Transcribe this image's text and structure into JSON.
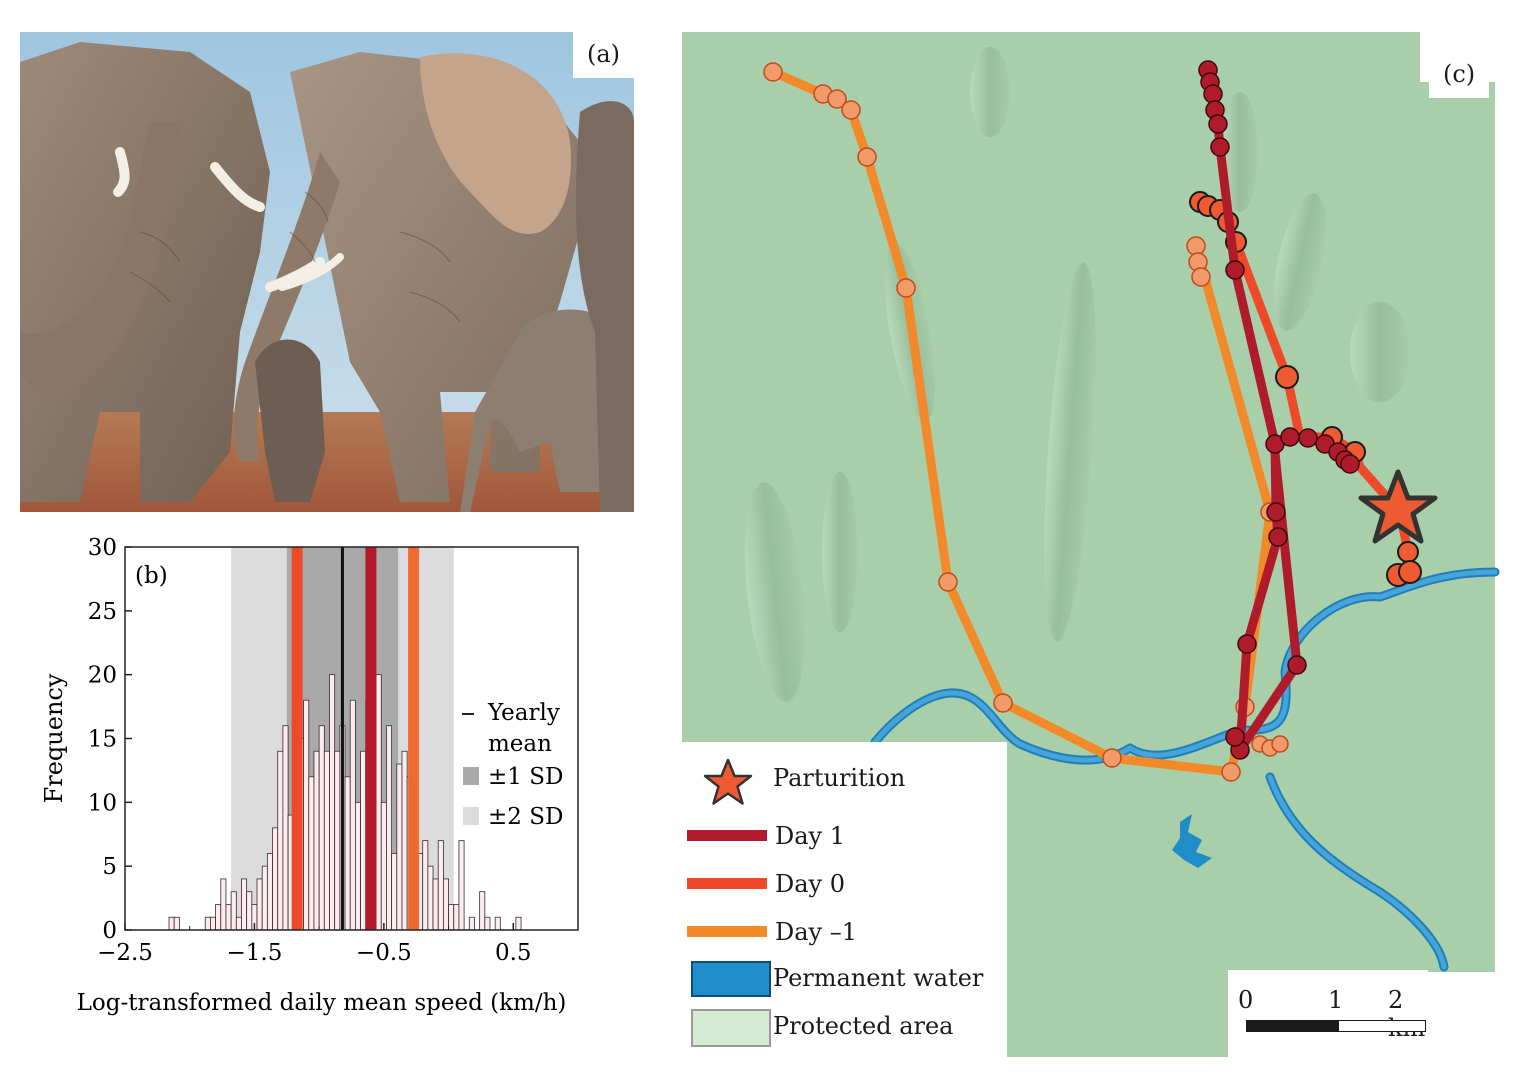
{
  "panel_a": {
    "label": "(a)",
    "photo_icon": "elephant-herd-with-calf-photo"
  },
  "panel_b": {
    "label": "(b)",
    "legend": {
      "yearly_mean_line1": "Yearly",
      "yearly_mean_line2": "mean",
      "sd1": "±1 SD",
      "sd2": "±2 SD"
    },
    "chart_data": {
      "type": "bar",
      "xlabel": "Log-transformed daily mean speed (km/h)",
      "ylabel": "Frequency",
      "xlim": [
        -2.5,
        1.0
      ],
      "ylim": [
        0,
        30
      ],
      "xticks": [
        -2.5,
        -1.5,
        -0.5,
        0.5
      ],
      "xtick_labels": [
        "−2.5",
        "−1.5",
        "−0.5",
        "0.5"
      ],
      "yticks": [
        0,
        5,
        10,
        15,
        20,
        25,
        30
      ],
      "bin_width": 0.04,
      "bins_start": [
        -2.16,
        -2.12,
        -2.08,
        -2.04,
        -2.0,
        -1.96,
        -1.92,
        -1.88,
        -1.84,
        -1.8,
        -1.76,
        -1.72,
        -1.68,
        -1.64,
        -1.6,
        -1.56,
        -1.52,
        -1.48,
        -1.44,
        -1.4,
        -1.36,
        -1.32,
        -1.28,
        -1.24,
        -1.2,
        -1.16,
        -1.12,
        -1.08,
        -1.04,
        -1.0,
        -0.96,
        -0.92,
        -0.88,
        -0.84,
        -0.8,
        -0.76,
        -0.72,
        -0.68,
        -0.64,
        -0.6,
        -0.56,
        -0.52,
        -0.48,
        -0.44,
        -0.4,
        -0.36,
        -0.32,
        -0.28,
        -0.24,
        -0.2,
        -0.16,
        -0.12,
        -0.08,
        -0.04,
        0.0,
        0.04,
        0.08,
        0.12,
        0.16,
        0.2,
        0.24,
        0.28,
        0.32,
        0.36,
        0.4,
        0.44,
        0.48,
        0.52
      ],
      "frequencies": [
        1,
        1,
        0,
        0,
        0,
        0,
        0,
        1,
        1,
        2,
        4,
        2,
        3,
        1,
        4,
        3,
        2,
        4,
        5,
        6,
        8,
        14,
        16,
        9,
        12,
        15,
        18,
        12,
        14,
        16,
        14,
        20,
        14,
        16,
        12,
        18,
        10,
        14,
        18,
        16,
        20,
        10,
        16,
        6,
        13,
        14,
        12,
        10,
        6,
        7,
        5,
        4,
        7,
        4,
        2,
        2,
        7,
        0,
        1,
        0,
        3,
        1,
        0,
        1,
        0,
        0,
        0,
        1
      ],
      "yearly_mean": -0.82,
      "sd": 0.43,
      "day_lines": [
        {
          "name": "Day 1",
          "x": -0.6,
          "color": "#b31b2b"
        },
        {
          "name": "Day 0",
          "x": -1.17,
          "color": "#ee4a2a"
        },
        {
          "name": "Day −1",
          "x": -0.27,
          "color": "#ee6a30"
        }
      ]
    }
  },
  "panel_c": {
    "label": "(c)",
    "legend": {
      "parturition": "Parturition",
      "day1": "Day 1",
      "day0": "Day 0",
      "dayminus1": "Day –1",
      "water": "Permanent water",
      "protected": "Protected area"
    },
    "scale": {
      "t0": "0",
      "t1": "1",
      "t2": "2 km"
    },
    "colors": {
      "day1": "#b01b2b",
      "day0": "#ee4a2a",
      "dayminus1": "#f28a2a",
      "water": "#1f8ec8",
      "protected": "#cfe6cf"
    }
  }
}
